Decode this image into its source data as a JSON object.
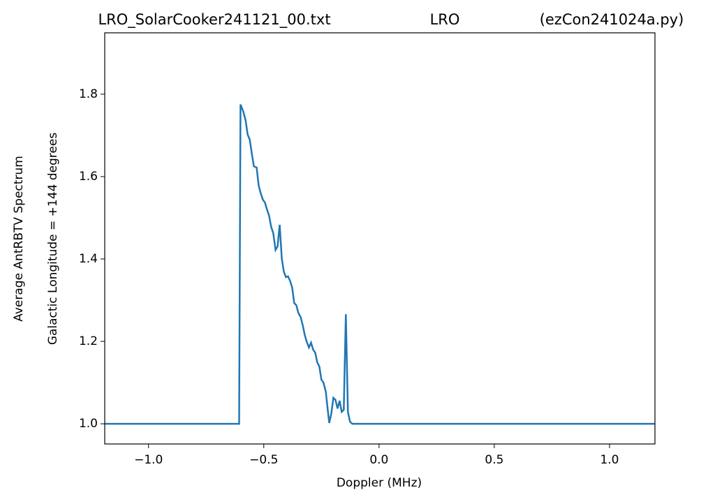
{
  "chart_data": {
    "type": "line",
    "title": [
      "LRO_SolarCooker241121_00.txt",
      "LRO",
      "(ezCon241024a.py)"
    ],
    "x_label": "Doppler (MHz)",
    "y_label": [
      "Average AntRBTV Spectrum",
      "Galactic Longitude = +144 degrees"
    ],
    "xlim": [
      -1.19,
      1.197
    ],
    "ylim": [
      0.951,
      1.949
    ],
    "xticks": [
      {
        "value": -1.0,
        "label": "−1.0"
      },
      {
        "value": -0.5,
        "label": "−0.5"
      },
      {
        "value": 0.0,
        "label": "0.0"
      },
      {
        "value": 0.5,
        "label": "0.5"
      },
      {
        "value": 1.0,
        "label": "1.0"
      }
    ],
    "yticks": [
      {
        "value": 1.0,
        "label": "1.0"
      },
      {
        "value": 1.2,
        "label": "1.2"
      },
      {
        "value": 1.4,
        "label": "1.4"
      },
      {
        "value": 1.6,
        "label": "1.6"
      },
      {
        "value": 1.8,
        "label": "1.8"
      }
    ],
    "grid": false,
    "series": [
      {
        "color": "#1f77b4",
        "x": [
          -1.19,
          -0.607,
          -0.601,
          -0.589,
          -0.579,
          -0.57,
          -0.561,
          -0.552,
          -0.543,
          -0.531,
          -0.522,
          -0.513,
          -0.504,
          -0.495,
          -0.486,
          -0.477,
          -0.468,
          -0.459,
          -0.449,
          -0.44,
          -0.431,
          -0.422,
          -0.413,
          -0.404,
          -0.395,
          -0.386,
          -0.377,
          -0.368,
          -0.359,
          -0.35,
          -0.34,
          -0.331,
          -0.322,
          -0.313,
          -0.304,
          -0.295,
          -0.286,
          -0.277,
          -0.268,
          -0.259,
          -0.25,
          -0.241,
          -0.231,
          -0.222,
          -0.216,
          -0.207,
          -0.198,
          -0.189,
          -0.18,
          -0.171,
          -0.162,
          -0.153,
          -0.144,
          -0.135,
          -0.126,
          -0.116,
          1.197
        ],
        "values": [
          1.0,
          1.0,
          1.775,
          1.758,
          1.737,
          1.702,
          1.69,
          1.656,
          1.625,
          1.622,
          1.578,
          1.559,
          1.544,
          1.537,
          1.52,
          1.505,
          1.478,
          1.463,
          1.422,
          1.431,
          1.483,
          1.402,
          1.369,
          1.356,
          1.358,
          1.347,
          1.331,
          1.293,
          1.288,
          1.269,
          1.259,
          1.239,
          1.215,
          1.198,
          1.185,
          1.197,
          1.18,
          1.173,
          1.149,
          1.139,
          1.107,
          1.1,
          1.078,
          1.031,
          1.002,
          1.025,
          1.063,
          1.058,
          1.037,
          1.056,
          1.029,
          1.034,
          1.266,
          1.029,
          1.005,
          1.0,
          1.0
        ]
      }
    ]
  }
}
